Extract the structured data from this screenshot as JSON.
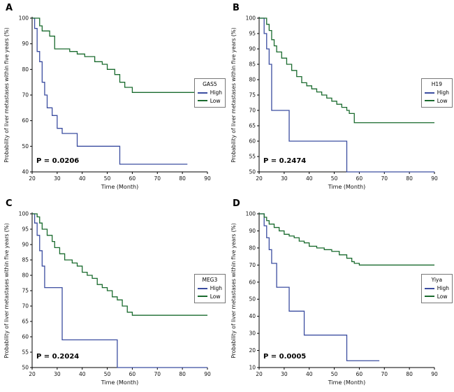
{
  "figure": {
    "background": "#ffffff",
    "high_color": "#3b4da0",
    "low_color": "#1a6b2e"
  },
  "chart_data": [
    {
      "type": "line",
      "panel": "A",
      "legend_title": "GAS5",
      "p_value": "P = 0.0206",
      "xlabel": "Time (Month)",
      "ylabel": "Probability of liver metastases within five years (%)",
      "xlim": [
        20,
        90
      ],
      "ylim": [
        40,
        100
      ],
      "xticks": [
        20,
        30,
        40,
        50,
        60,
        70,
        80,
        90
      ],
      "yticks": [
        40,
        50,
        60,
        70,
        80,
        90,
        100
      ],
      "grid": false,
      "legend_position": "right",
      "series": [
        {
          "name": "High",
          "color": "#3b4da0",
          "step": "post",
          "points": [
            [
              20,
              100
            ],
            [
              21,
              96
            ],
            [
              22,
              87
            ],
            [
              23,
              83
            ],
            [
              24,
              75
            ],
            [
              25,
              70
            ],
            [
              26,
              65
            ],
            [
              28,
              62
            ],
            [
              30,
              57
            ],
            [
              32,
              55
            ],
            [
              38,
              50
            ],
            [
              55,
              43
            ],
            [
              82,
              43
            ]
          ]
        },
        {
          "name": "Low",
          "color": "#1a6b2e",
          "step": "post",
          "points": [
            [
              20,
              100
            ],
            [
              23,
              97
            ],
            [
              24,
              95
            ],
            [
              27,
              93
            ],
            [
              29,
              88
            ],
            [
              35,
              87
            ],
            [
              38,
              86
            ],
            [
              41,
              85
            ],
            [
              45,
              83
            ],
            [
              48,
              82
            ],
            [
              50,
              80
            ],
            [
              53,
              78
            ],
            [
              55,
              75
            ],
            [
              57,
              73
            ],
            [
              60,
              71
            ],
            [
              90,
              71
            ]
          ]
        }
      ]
    },
    {
      "type": "line",
      "panel": "B",
      "legend_title": "H19",
      "p_value": "P = 0.2474",
      "xlabel": "Time (Month)",
      "ylabel": "Probability of liver metastases within five years (%)",
      "xlim": [
        20,
        90
      ],
      "ylim": [
        50,
        100
      ],
      "xticks": [
        20,
        30,
        40,
        50,
        60,
        70,
        80,
        90
      ],
      "yticks": [
        50,
        55,
        60,
        65,
        70,
        75,
        80,
        85,
        90,
        95,
        100
      ],
      "grid": false,
      "legend_position": "right",
      "series": [
        {
          "name": "High",
          "color": "#3b4da0",
          "step": "post",
          "points": [
            [
              20,
              100
            ],
            [
              22,
              95
            ],
            [
              23,
              90
            ],
            [
              24,
              85
            ],
            [
              25,
              70
            ],
            [
              32,
              60
            ],
            [
              55,
              50
            ],
            [
              90,
              50
            ]
          ]
        },
        {
          "name": "Low",
          "color": "#1a6b2e",
          "step": "post",
          "points": [
            [
              20,
              100
            ],
            [
              23,
              98
            ],
            [
              24,
              96
            ],
            [
              25,
              93
            ],
            [
              26,
              91
            ],
            [
              27,
              89
            ],
            [
              29,
              87
            ],
            [
              31,
              85
            ],
            [
              33,
              83
            ],
            [
              35,
              81
            ],
            [
              37,
              79
            ],
            [
              39,
              78
            ],
            [
              41,
              77
            ],
            [
              43,
              76
            ],
            [
              45,
              75
            ],
            [
              47,
              74
            ],
            [
              49,
              73
            ],
            [
              51,
              72
            ],
            [
              53,
              71
            ],
            [
              55,
              70
            ],
            [
              56,
              69
            ],
            [
              58,
              66
            ],
            [
              90,
              66
            ]
          ]
        }
      ]
    },
    {
      "type": "line",
      "panel": "C",
      "legend_title": "MEG3",
      "p_value": "P = 0.2024",
      "xlabel": "Time (Month)",
      "ylabel": "Probability of liver metastases within five years (%)",
      "xlim": [
        20,
        90
      ],
      "ylim": [
        50,
        100
      ],
      "xticks": [
        20,
        30,
        40,
        50,
        60,
        70,
        80,
        90
      ],
      "yticks": [
        50,
        55,
        60,
        65,
        70,
        75,
        80,
        85,
        90,
        95,
        100
      ],
      "grid": false,
      "legend_position": "right",
      "series": [
        {
          "name": "High",
          "color": "#3b4da0",
          "step": "post",
          "points": [
            [
              20,
              100
            ],
            [
              21,
              97
            ],
            [
              22,
              93
            ],
            [
              23,
              88
            ],
            [
              24,
              83
            ],
            [
              25,
              76
            ],
            [
              32,
              59
            ],
            [
              54,
              50
            ],
            [
              90,
              50
            ]
          ]
        },
        {
          "name": "Low",
          "color": "#1a6b2e",
          "step": "post",
          "points": [
            [
              20,
              100
            ],
            [
              22,
              99
            ],
            [
              23,
              97
            ],
            [
              24,
              95
            ],
            [
              26,
              93
            ],
            [
              28,
              91
            ],
            [
              29,
              89
            ],
            [
              31,
              87
            ],
            [
              33,
              85
            ],
            [
              36,
              84
            ],
            [
              38,
              83
            ],
            [
              40,
              81
            ],
            [
              42,
              80
            ],
            [
              44,
              79
            ],
            [
              46,
              77
            ],
            [
              48,
              76
            ],
            [
              50,
              75
            ],
            [
              52,
              73
            ],
            [
              54,
              72
            ],
            [
              56,
              70
            ],
            [
              58,
              68
            ],
            [
              60,
              67
            ],
            [
              90,
              67
            ]
          ]
        }
      ]
    },
    {
      "type": "line",
      "panel": "D",
      "legend_title": "Yiya",
      "p_value": "P = 0.0005",
      "xlabel": "Time (Month)",
      "ylabel": "Probability of liver metastases within five years (%)",
      "xlim": [
        20,
        90
      ],
      "ylim": [
        10,
        100
      ],
      "xticks": [
        20,
        30,
        40,
        50,
        60,
        70,
        80,
        90
      ],
      "yticks": [
        10,
        20,
        30,
        40,
        50,
        60,
        70,
        80,
        90,
        100
      ],
      "grid": false,
      "legend_position": "right",
      "series": [
        {
          "name": "High",
          "color": "#3b4da0",
          "step": "post",
          "points": [
            [
              20,
              100
            ],
            [
              22,
              93
            ],
            [
              23,
              86
            ],
            [
              24,
              79
            ],
            [
              25,
              71
            ],
            [
              27,
              57
            ],
            [
              32,
              43
            ],
            [
              38,
              29
            ],
            [
              55,
              14
            ],
            [
              68,
              14
            ]
          ]
        },
        {
          "name": "Low",
          "color": "#1a6b2e",
          "step": "post",
          "points": [
            [
              20,
              100
            ],
            [
              22,
              98
            ],
            [
              23,
              96
            ],
            [
              24,
              94
            ],
            [
              26,
              92
            ],
            [
              28,
              90
            ],
            [
              30,
              88
            ],
            [
              32,
              87
            ],
            [
              34,
              86
            ],
            [
              36,
              84
            ],
            [
              38,
              83
            ],
            [
              40,
              81
            ],
            [
              43,
              80
            ],
            [
              46,
              79
            ],
            [
              49,
              78
            ],
            [
              52,
              76
            ],
            [
              55,
              74
            ],
            [
              57,
              72
            ],
            [
              58,
              71
            ],
            [
              60,
              70
            ],
            [
              90,
              70
            ]
          ]
        }
      ]
    }
  ]
}
